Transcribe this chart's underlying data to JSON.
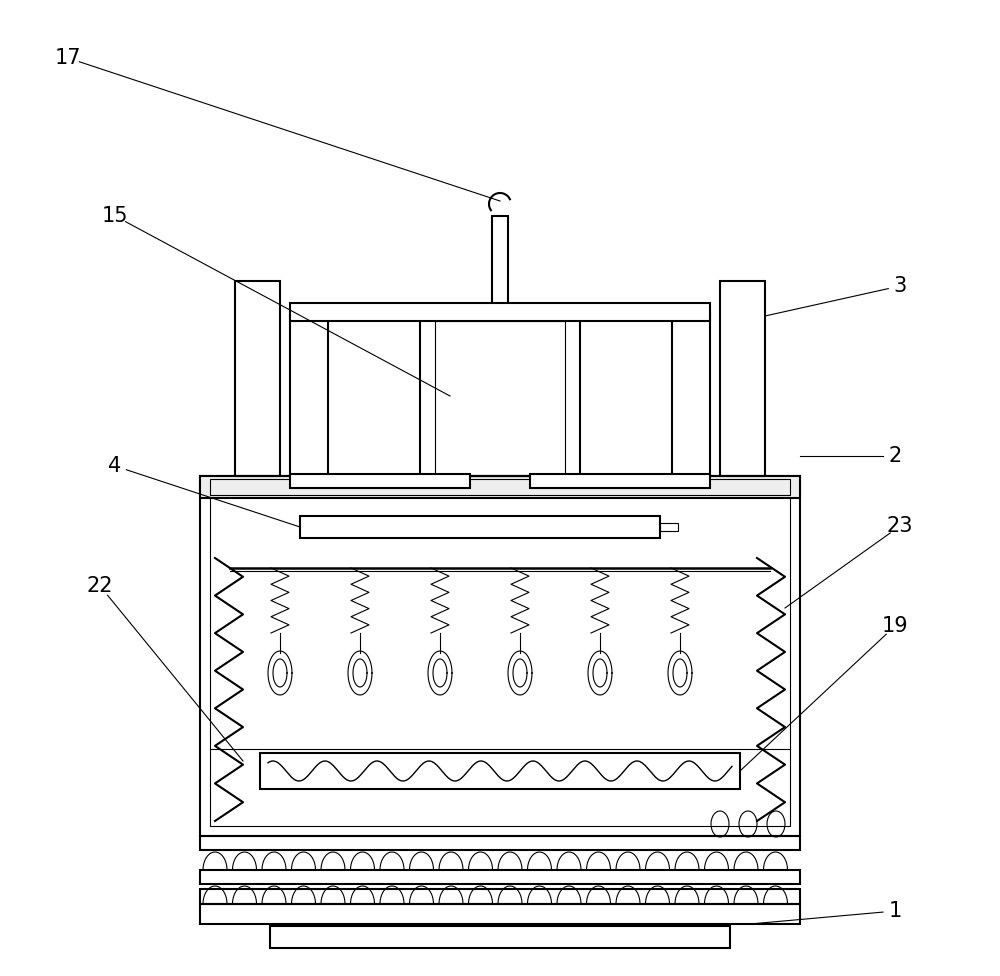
{
  "bg_color": "#ffffff",
  "line_color": "#000000",
  "fig_width": 10.0,
  "fig_height": 9.76,
  "lw_main": 1.5,
  "lw_thin": 0.8,
  "lw_med": 1.1
}
